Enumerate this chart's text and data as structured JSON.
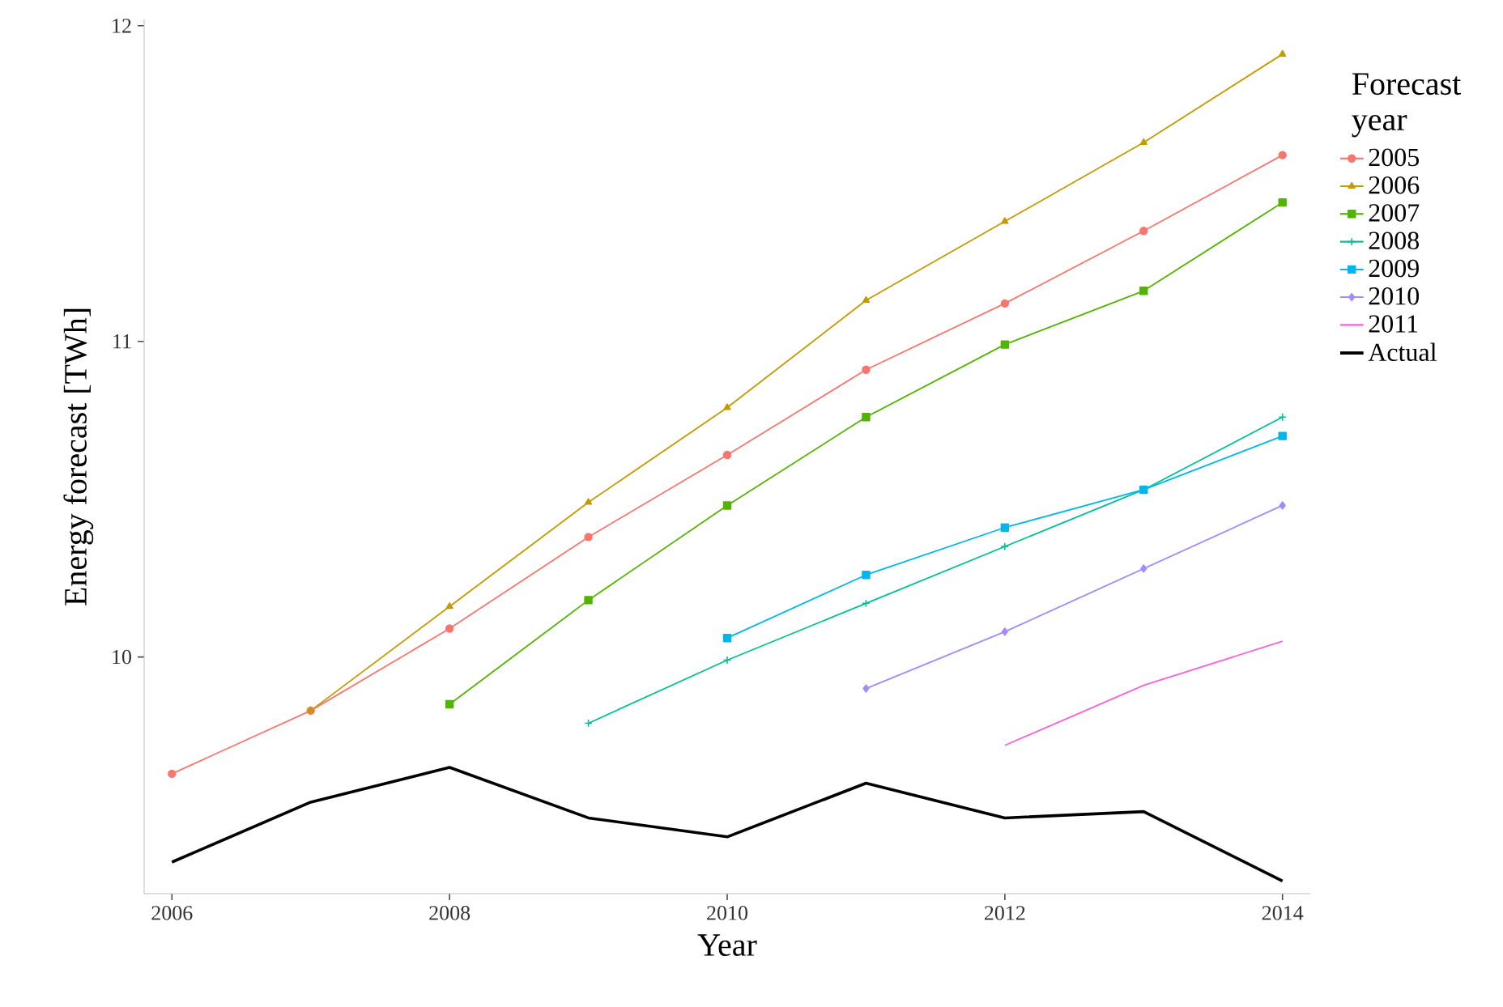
{
  "chart_data": {
    "type": "line",
    "xlabel": "Year",
    "ylabel": "Energy forecast [TWh]",
    "legend_title": "Forecast year",
    "legend": "right",
    "grid": false,
    "xlim": [
      2005.8,
      2014.2
    ],
    "xticks": [
      2006,
      2008,
      2010,
      2012,
      2014
    ],
    "ylim": [
      9.25,
      12.02
    ],
    "yticks": [
      10,
      11,
      12
    ],
    "series": [
      {
        "name": "2005",
        "color": "#f8766d",
        "marker": "circle",
        "x": [
          2006,
          2007,
          2008,
          2009,
          2010,
          2011,
          2012,
          2013,
          2014
        ],
        "values": [
          9.63,
          9.83,
          10.09,
          10.38,
          10.64,
          10.91,
          11.12,
          11.35,
          11.59
        ]
      },
      {
        "name": "2006",
        "color": "#c49a00",
        "marker": "triangle",
        "x": [
          2007,
          2008,
          2009,
          2010,
          2011,
          2012,
          2013,
          2014
        ],
        "values": [
          9.83,
          10.16,
          10.49,
          10.79,
          11.13,
          11.38,
          11.63,
          11.91
        ]
      },
      {
        "name": "2007",
        "color": "#53b400",
        "marker": "square",
        "x": [
          2008,
          2009,
          2010,
          2011,
          2012,
          2013,
          2014
        ],
        "values": [
          9.85,
          10.18,
          10.48,
          10.76,
          10.99,
          11.16,
          11.44
        ]
      },
      {
        "name": "2008",
        "color": "#00c094",
        "marker": "cross",
        "x": [
          2009,
          2010,
          2011,
          2012,
          2013,
          2014
        ],
        "values": [
          9.79,
          9.99,
          10.17,
          10.35,
          10.53,
          10.76
        ]
      },
      {
        "name": "2009",
        "color": "#00b6eb",
        "marker": "square",
        "x": [
          2010,
          2011,
          2012,
          2013,
          2014
        ],
        "values": [
          10.06,
          10.26,
          10.41,
          10.53,
          10.7
        ]
      },
      {
        "name": "2010",
        "color": "#a58aff",
        "marker": "diamond",
        "x": [
          2011,
          2012,
          2013,
          2014
        ],
        "values": [
          9.9,
          10.08,
          10.28,
          10.48
        ]
      },
      {
        "name": "2011",
        "color": "#fb61d7",
        "marker": "none",
        "x": [
          2012,
          2013,
          2014
        ],
        "values": [
          9.72,
          9.91,
          10.05
        ]
      },
      {
        "name": "Actual",
        "color": "#000000",
        "marker": "none",
        "x": [
          2006,
          2007,
          2008,
          2009,
          2010,
          2011,
          2012,
          2013,
          2014
        ],
        "values": [
          9.35,
          9.54,
          9.65,
          9.49,
          9.43,
          9.6,
          9.49,
          9.51,
          9.29
        ]
      }
    ]
  }
}
